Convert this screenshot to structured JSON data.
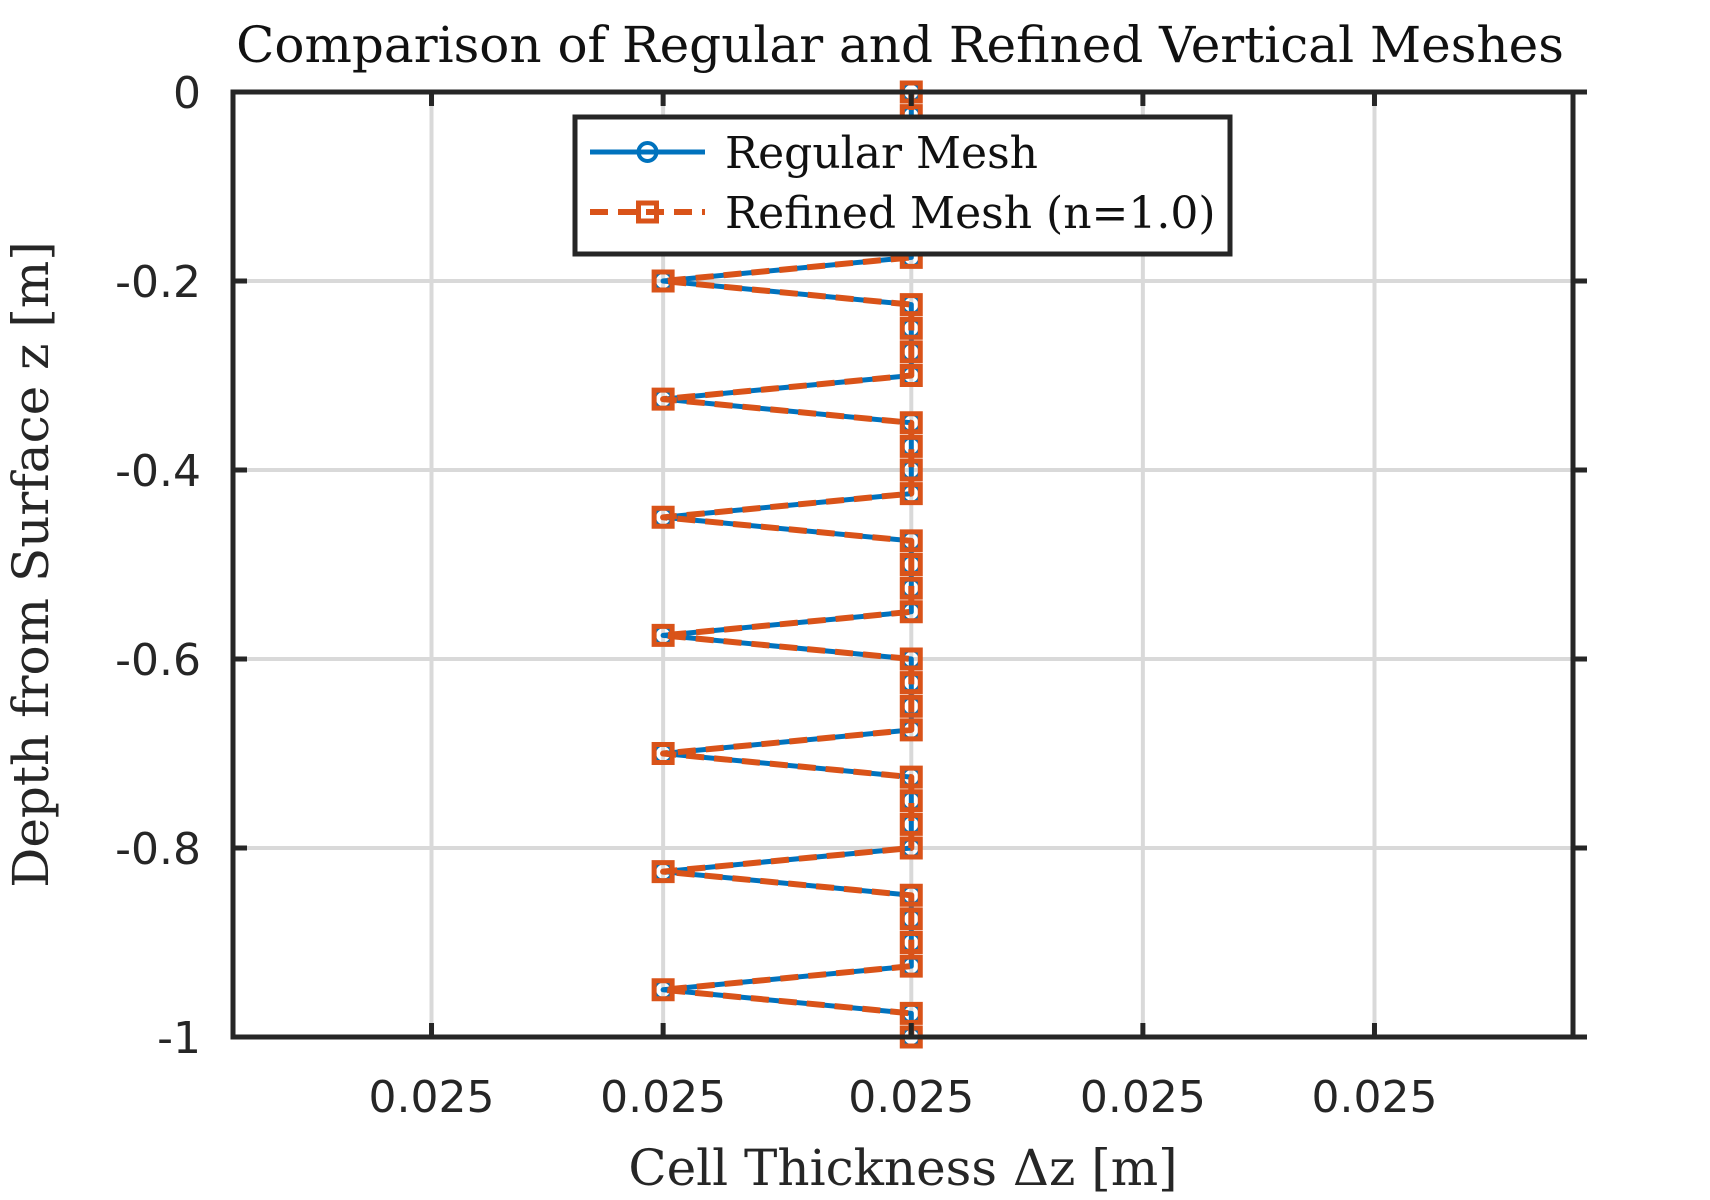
{
  "chart_data": {
    "type": "line",
    "title": "Comparison of Regular and Refined Vertical Meshes",
    "xlabel": "Cell Thickness Δz [m]",
    "ylabel": "Depth from Surface z [m]",
    "x_tick_labels": [
      "0.025",
      "0.025",
      "0.025",
      "0.025",
      "0.025"
    ],
    "y_ticks": [
      0,
      -0.2,
      -0.4,
      -0.6,
      -0.8,
      -1
    ],
    "y_tick_labels": [
      "0",
      "-0.2",
      "-0.4",
      "-0.6",
      "-0.8",
      "-1"
    ],
    "xlim": [
      0.02499999999999986,
      0.02500000000000014
    ],
    "ylim": [
      -1,
      0
    ],
    "x_ticks": [
      0.0249999999999999,
      0.02499999999999995,
      0.025,
      0.02500000000000005,
      0.0250000000000001
    ],
    "grid": true,
    "legend_position": "top-center",
    "series": [
      {
        "name": "Regular Mesh",
        "color": "#0072BD",
        "line_style": "solid",
        "marker": "circle",
        "points": [
          {
            "x": 0.025,
            "y": 0
          },
          {
            "x": 0.025,
            "y": -0.025
          },
          {
            "x": 0.025,
            "y": -0.05
          },
          {
            "x": 0.025,
            "y": -0.075
          },
          {
            "x": 0.025,
            "y": -0.1
          },
          {
            "x": 0.025,
            "y": -0.125
          },
          {
            "x": 0.025,
            "y": -0.15
          },
          {
            "x": 0.025,
            "y": -0.175
          },
          {
            "x": 0.02499999999999995,
            "y": -0.2
          },
          {
            "x": 0.025,
            "y": -0.225
          },
          {
            "x": 0.025,
            "y": -0.25
          },
          {
            "x": 0.025,
            "y": -0.275
          },
          {
            "x": 0.025,
            "y": -0.3
          },
          {
            "x": 0.02499999999999995,
            "y": -0.325
          },
          {
            "x": 0.025,
            "y": -0.35
          },
          {
            "x": 0.025,
            "y": -0.375
          },
          {
            "x": 0.025,
            "y": -0.4
          },
          {
            "x": 0.025,
            "y": -0.425
          },
          {
            "x": 0.02499999999999995,
            "y": -0.45
          },
          {
            "x": 0.025,
            "y": -0.475
          },
          {
            "x": 0.025,
            "y": -0.5
          },
          {
            "x": 0.025,
            "y": -0.525
          },
          {
            "x": 0.025,
            "y": -0.55
          },
          {
            "x": 0.02499999999999995,
            "y": -0.575
          },
          {
            "x": 0.025,
            "y": -0.6
          },
          {
            "x": 0.025,
            "y": -0.625
          },
          {
            "x": 0.025,
            "y": -0.65
          },
          {
            "x": 0.025,
            "y": -0.675
          },
          {
            "x": 0.02499999999999995,
            "y": -0.7
          },
          {
            "x": 0.025,
            "y": -0.725
          },
          {
            "x": 0.025,
            "y": -0.75
          },
          {
            "x": 0.025,
            "y": -0.775
          },
          {
            "x": 0.025,
            "y": -0.8
          },
          {
            "x": 0.02499999999999995,
            "y": -0.825
          },
          {
            "x": 0.025,
            "y": -0.85
          },
          {
            "x": 0.025,
            "y": -0.875
          },
          {
            "x": 0.025,
            "y": -0.9
          },
          {
            "x": 0.025,
            "y": -0.925
          },
          {
            "x": 0.02499999999999995,
            "y": -0.95
          },
          {
            "x": 0.025,
            "y": -0.975
          },
          {
            "x": 0.025,
            "y": -1
          }
        ]
      },
      {
        "name": "Refined Mesh (n=1.0)",
        "color": "#D95319",
        "line_style": "dashed",
        "marker": "square",
        "points": [
          {
            "x": 0.025,
            "y": 0
          },
          {
            "x": 0.025,
            "y": -0.025
          },
          {
            "x": 0.025,
            "y": -0.05
          },
          {
            "x": 0.025,
            "y": -0.075
          },
          {
            "x": 0.025,
            "y": -0.1
          },
          {
            "x": 0.025,
            "y": -0.125
          },
          {
            "x": 0.025,
            "y": -0.15
          },
          {
            "x": 0.025,
            "y": -0.175
          },
          {
            "x": 0.02499999999999995,
            "y": -0.2
          },
          {
            "x": 0.025,
            "y": -0.225
          },
          {
            "x": 0.025,
            "y": -0.25
          },
          {
            "x": 0.025,
            "y": -0.275
          },
          {
            "x": 0.025,
            "y": -0.3
          },
          {
            "x": 0.02499999999999995,
            "y": -0.325
          },
          {
            "x": 0.025,
            "y": -0.35
          },
          {
            "x": 0.025,
            "y": -0.375
          },
          {
            "x": 0.025,
            "y": -0.4
          },
          {
            "x": 0.025,
            "y": -0.425
          },
          {
            "x": 0.02499999999999995,
            "y": -0.45
          },
          {
            "x": 0.025,
            "y": -0.475
          },
          {
            "x": 0.025,
            "y": -0.5
          },
          {
            "x": 0.025,
            "y": -0.525
          },
          {
            "x": 0.025,
            "y": -0.55
          },
          {
            "x": 0.02499999999999995,
            "y": -0.575
          },
          {
            "x": 0.025,
            "y": -0.6
          },
          {
            "x": 0.025,
            "y": -0.625
          },
          {
            "x": 0.025,
            "y": -0.65
          },
          {
            "x": 0.025,
            "y": -0.675
          },
          {
            "x": 0.02499999999999995,
            "y": -0.7
          },
          {
            "x": 0.025,
            "y": -0.725
          },
          {
            "x": 0.025,
            "y": -0.75
          },
          {
            "x": 0.025,
            "y": -0.775
          },
          {
            "x": 0.025,
            "y": -0.8
          },
          {
            "x": 0.02499999999999995,
            "y": -0.825
          },
          {
            "x": 0.025,
            "y": -0.85
          },
          {
            "x": 0.025,
            "y": -0.875
          },
          {
            "x": 0.025,
            "y": -0.9
          },
          {
            "x": 0.025,
            "y": -0.925
          },
          {
            "x": 0.02499999999999995,
            "y": -0.95
          },
          {
            "x": 0.025,
            "y": -0.975
          },
          {
            "x": 0.025,
            "y": -1
          }
        ]
      }
    ]
  }
}
